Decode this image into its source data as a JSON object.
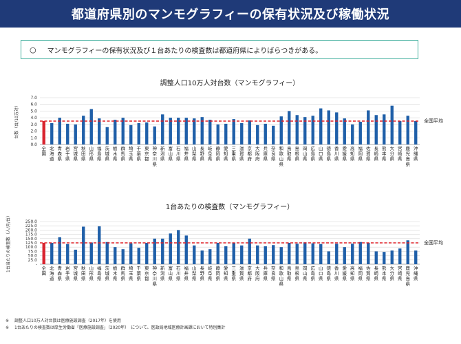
{
  "title": "都道府県別のマンモグラフィーの保有状況及び稼働状況",
  "callout": {
    "marker": "○",
    "text": "マンモグラフィーの保有状況及び１台あたりの検査数は都道府県によりばらつきがある。"
  },
  "prefectures": [
    "全国",
    "北海道",
    "青森県",
    "岩手県",
    "宮城県",
    "秋田県",
    "山形県",
    "福島県",
    "茨城県",
    "栃木県",
    "群馬県",
    "埼玉県",
    "千葉県",
    "東京都",
    "神奈川県",
    "新潟県",
    "富山県",
    "石川県",
    "福井県",
    "山梨県",
    "長野県",
    "岐阜県",
    "静岡県",
    "愛知県",
    "三重県",
    "滋賀県",
    "京都府",
    "大阪府",
    "兵庫県",
    "奈良県",
    "和歌山県",
    "鳥取県",
    "島根県",
    "岡山県",
    "広島県",
    "山口県",
    "徳島県",
    "香川県",
    "愛媛県",
    "高知県",
    "福岡県",
    "佐賀県",
    "長崎県",
    "熊本県",
    "大分県",
    "宮崎県",
    "鹿児島県",
    "沖縄県"
  ],
  "chart_data": [
    {
      "type": "bar",
      "title": "調整人口10万人対台数（マンモグラフィー）",
      "ylabel": "台数（台/10万対）",
      "ylim": [
        0,
        7
      ],
      "yticks": [
        "0.0",
        "1.0",
        "2.0",
        "3.0",
        "4.0",
        "5.0",
        "6.0",
        "7.0"
      ],
      "ytick_values": [
        0,
        1,
        2,
        3,
        4,
        5,
        6,
        7
      ],
      "reference_label": "全国平均",
      "reference_value": 3.5,
      "values": [
        3.5,
        3.2,
        4.0,
        3.1,
        3.0,
        4.3,
        5.3,
        3.9,
        2.6,
        3.7,
        4.0,
        2.9,
        3.2,
        3.3,
        2.7,
        4.5,
        4.0,
        4.0,
        4.0,
        3.9,
        4.1,
        3.7,
        3.0,
        3.1,
        3.8,
        3.2,
        3.6,
        2.9,
        3.1,
        2.8,
        4.2,
        5.0,
        4.4,
        4.1,
        4.3,
        5.4,
        5.1,
        4.8,
        3.9,
        3.0,
        3.4,
        5.1,
        4.4,
        4.5,
        5.8,
        3.5,
        4.3,
        3.5
      ],
      "colors": {
        "national": "#d9232e",
        "bar": "#1f5fa8",
        "reference": "#e01e25"
      }
    },
    {
      "type": "bar",
      "title": "1台あたりの検査数（マンモグラフィー）",
      "ylabel": "1台当たりの検査数（人/月/台）",
      "ylim": [
        0,
        250
      ],
      "yticks": [
        "-",
        "25.0",
        "50.0",
        "75.0",
        "100.0",
        "125.0",
        "150.0",
        "175.0",
        "200.0",
        "225.0",
        "250.0"
      ],
      "ytick_values": [
        0,
        25,
        50,
        75,
        100,
        125,
        150,
        175,
        200,
        225,
        250
      ],
      "reference_label": "全国平均",
      "reference_value": 125,
      "values": [
        125,
        125,
        158,
        118,
        85,
        220,
        127,
        222,
        130,
        100,
        88,
        122,
        96,
        125,
        150,
        150,
        180,
        200,
        168,
        110,
        80,
        88,
        125,
        105,
        125,
        110,
        150,
        110,
        105,
        112,
        100,
        125,
        120,
        128,
        122,
        118,
        75,
        120,
        100,
        120,
        130,
        125,
        75,
        72,
        80,
        92,
        140,
        80
      ],
      "colors": {
        "national": "#d9232e",
        "bar": "#1f5fa8",
        "reference": "#e01e25"
      }
    }
  ],
  "footnotes": [
    {
      "mark": "※",
      "text": "調整人口10万人対台数は医療施設調査（2017年）を使用"
    },
    {
      "mark": "※",
      "text": "1台あたりの検査数は厚生労働省「医療施設調査」（2020年）　について、医政局地域医療計画課において特別集計"
    }
  ]
}
